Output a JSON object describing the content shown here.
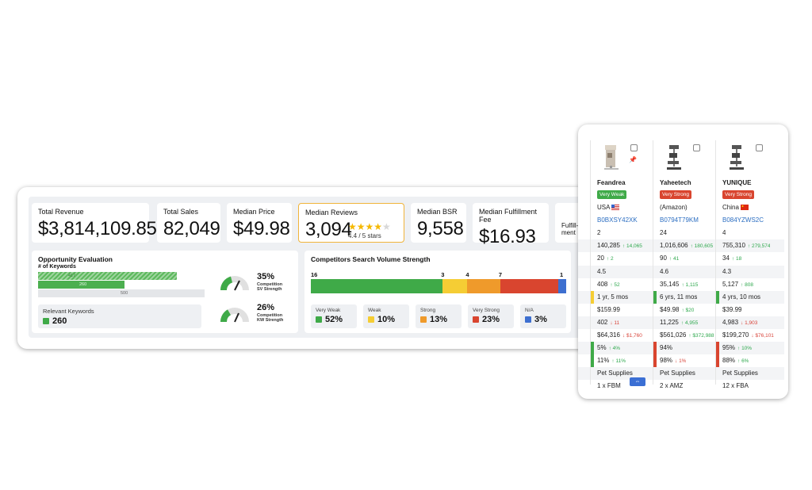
{
  "kpis": [
    {
      "label": "Total Revenue",
      "value": "$3,814,109.85"
    },
    {
      "label": "Total Sales",
      "value": "82,049"
    },
    {
      "label": "Median Price",
      "value": "$49.98"
    },
    {
      "label": "Median Reviews",
      "value": "3,094",
      "rating_text": "4.4 / 5 stars",
      "rating": 4.4
    },
    {
      "label": "Median BSR",
      "value": "9,558"
    },
    {
      "label": "Median Fulfillment Fee",
      "value": "$16.93"
    },
    {
      "label": "Fulfill-\nment"
    }
  ],
  "opportunity": {
    "title": "Opportunity Evaluation",
    "subtitle": "# of Keywords",
    "bars": [
      {
        "label": "417",
        "value": 417
      },
      {
        "label": "260",
        "value": 260
      },
      {
        "label": "500",
        "value": 500
      }
    ],
    "relevant_label": "Relevant Keywords",
    "relevant_value": "260",
    "gauges": [
      {
        "pct": "35%",
        "label1": "Competition",
        "label2": "SV Strength",
        "value": 35
      },
      {
        "pct": "26%",
        "label1": "Competition",
        "label2": "KW Strength",
        "value": 26
      }
    ]
  },
  "sv_strength": {
    "title": "Competitors Search Volume Strength",
    "segments": [
      {
        "count": "16",
        "value": 16,
        "color": "#3faa48"
      },
      {
        "count": "3",
        "value": 3,
        "color": "#f5cd34"
      },
      {
        "count": "4",
        "value": 4,
        "color": "#ef9a2b"
      },
      {
        "count": "7",
        "value": 7,
        "color": "#d9452f"
      },
      {
        "count": "1",
        "value": 1,
        "color": "#3d6fd0"
      }
    ],
    "tiles": [
      {
        "label": "Very Weak",
        "value": "52%",
        "color": "#3faa48"
      },
      {
        "label": "Weak",
        "value": "10%",
        "color": "#f5cd34"
      },
      {
        "label": "Strong",
        "value": "13%",
        "color": "#ef9a2b"
      },
      {
        "label": "Very Strong",
        "value": "23%",
        "color": "#d9452f"
      },
      {
        "label": "N/A",
        "value": "3%",
        "color": "#3d6fd0"
      }
    ]
  },
  "products": [
    {
      "brand": "Feandrea",
      "badge": "Very Weak",
      "badge_color": "#3faa48",
      "country": "USA",
      "asin": "B0BXSY42XK",
      "r1": "2",
      "r2": "140,285",
      "r2d": "↑ 14,065",
      "r3": "20",
      "r3d": "↑ 2",
      "r4": "4.5",
      "r5": "408",
      "r5d": "↑ 52",
      "age": "1 yr, 5 mos",
      "age_color": "#f5cd34",
      "price": "$159.99",
      "r8": "402",
      "r8d": "↓ 11",
      "r9": "$64,316",
      "r9d": "↓ $1,760",
      "r10": "5%",
      "r10d": "↑ 4%",
      "r11": "11%",
      "r11d": "↑ 11%",
      "bar_color": "#3faa48",
      "category": "Pet Supplies",
      "seller": "1 x FBM"
    },
    {
      "brand": "Yaheetech",
      "badge": "Very Strong",
      "badge_color": "#d9452f",
      "country": "(Amazon)",
      "asin": "B0794T79KM",
      "r1": "24",
      "r2": "1,016,606",
      "r2d": "↑ 180,605",
      "r3": "90",
      "r3d": "↑ 41",
      "r4": "4.6",
      "r5": "35,145",
      "r5d": "↑ 1,115",
      "age": "6 yrs, 11 mos",
      "age_color": "#3faa48",
      "price": "$49.98",
      "price_d": "↑ $20",
      "r8": "11,225",
      "r8d": "↑ 4,955",
      "r9": "$561,026",
      "r9d": "↑ $372,988",
      "r10": "94%",
      "r10d": "",
      "r11": "98%",
      "r11d": "↓ 1%",
      "bar_color": "#d9452f",
      "category": "Pet Supplies",
      "seller": "2 x AMZ"
    },
    {
      "brand": "YUNIQUE",
      "badge": "Very Strong",
      "badge_color": "#d9452f",
      "country": "China",
      "asin": "B084YZWS2C",
      "r1": "4",
      "r2": "755,310",
      "r2d": "↑ 279,574",
      "r3": "34",
      "r3d": "↑ 18",
      "r4": "4.3",
      "r5": "5,127",
      "r5d": "↑ 808",
      "age": "4 yrs, 10 mos",
      "age_color": "#3faa48",
      "price": "$39.99",
      "r8": "4,983",
      "r8d": "↓ 1,903",
      "r9": "$199,270",
      "r9d": "↓ $76,101",
      "r10": "95%",
      "r10d": "↑ 10%",
      "r11": "88%",
      "r11d": "↑ 6%",
      "bar_color": "#d9452f",
      "category": "Pet Supplies",
      "seller": "12 x FBA"
    }
  ],
  "colors": {
    "accent": "#f0b43a",
    "green": "#3faa48",
    "red": "#d9452f",
    "blue": "#2d6fc2"
  }
}
